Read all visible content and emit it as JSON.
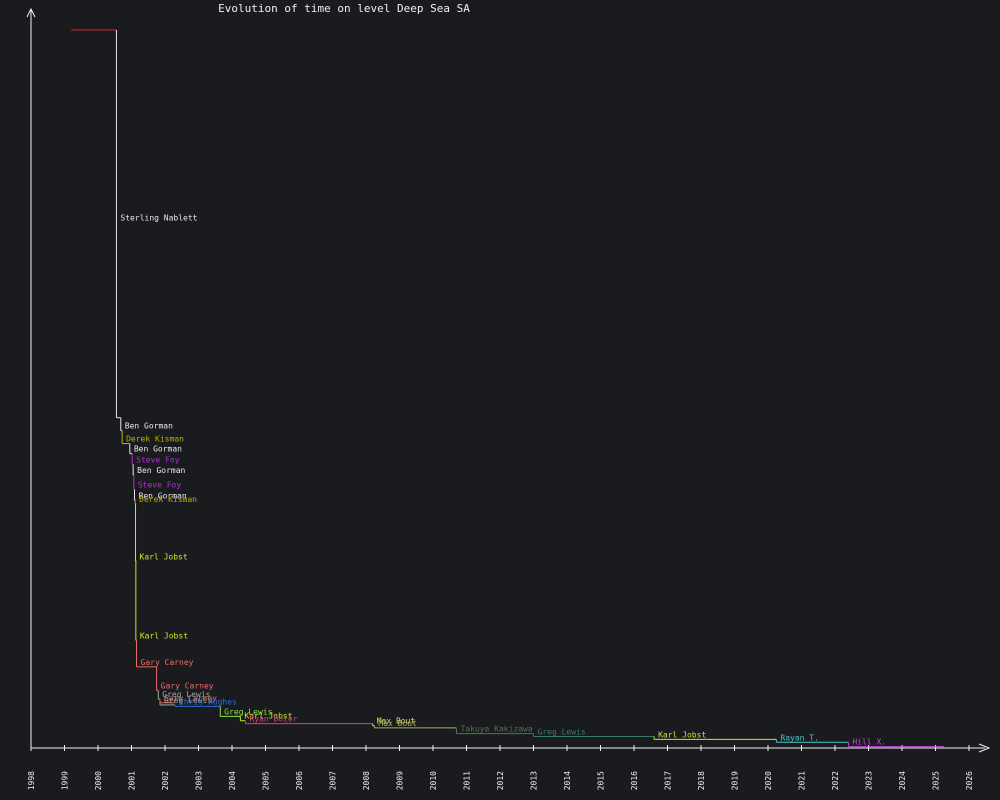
{
  "chart_data": {
    "type": "line",
    "title": "Evolution of time on level Deep Sea SA",
    "xlabel": "",
    "ylabel": "",
    "xlim": [
      1998.0,
      2026.5
    ],
    "ylim": [
      0,
      1000
    ],
    "grid": false,
    "legend": "none",
    "x_ticks": [
      "1998",
      "1999",
      "2000",
      "2001",
      "2002",
      "2003",
      "2004",
      "2005",
      "2006",
      "2007",
      "2008",
      "2009",
      "2010",
      "2011",
      "2012",
      "2013",
      "2014",
      "2015",
      "2016",
      "2017",
      "2018",
      "2019",
      "2020",
      "2021",
      "2022",
      "2023",
      "2024",
      "2025",
      "2026"
    ],
    "steps": [
      {
        "name": "",
        "x_start": 1999.2,
        "x_end": 2000.55,
        "y": 1000,
        "color": "#d22b2b",
        "label": false
      },
      {
        "name": "Sterling Nablett",
        "x_start": 2000.55,
        "x_end": 2000.68,
        "y": 460,
        "color": "#e8e8e8",
        "label": true,
        "label_y": 735
      },
      {
        "name": "Ben Gorman",
        "x_start": 2000.68,
        "x_end": 2000.72,
        "y": 442,
        "color": "#e8e8e8",
        "label": true
      },
      {
        "name": "Derek Kisman",
        "x_start": 2000.72,
        "x_end": 2000.95,
        "y": 424,
        "color": "#b8b200",
        "label": true
      },
      {
        "name": "Ben Gorman",
        "x_start": 2000.95,
        "x_end": 2001.02,
        "y": 410,
        "color": "#e8e8e8",
        "label": true
      },
      {
        "name": "Steve Foy",
        "x_start": 2001.02,
        "x_end": 2001.05,
        "y": 395,
        "color": "#b02fd0",
        "label": true
      },
      {
        "name": "Ben Gorman",
        "x_start": 2001.05,
        "x_end": 2001.07,
        "y": 380,
        "color": "#e8e8e8",
        "label": true
      },
      {
        "name": "Steve Foy",
        "x_start": 2001.07,
        "x_end": 2001.09,
        "y": 360,
        "color": "#b02fd0",
        "label": true
      },
      {
        "name": "Ben Gorman",
        "x_start": 2001.09,
        "x_end": 2001.11,
        "y": 345,
        "color": "#e8e8e8",
        "label": true
      },
      {
        "name": "Derek Kisman",
        "x_start": 2001.11,
        "x_end": 2001.12,
        "y": 340,
        "color": "#b8b200",
        "label": true
      },
      {
        "name": "Karl Jobst",
        "x_start": 2001.12,
        "x_end": 2001.13,
        "y": 260,
        "color": "#c5e82a",
        "label": true
      },
      {
        "name": "Karl Jobst",
        "x_start": 2001.13,
        "x_end": 2001.15,
        "y": 150,
        "color": "#c5e82a",
        "label": true
      },
      {
        "name": "Gary Carney",
        "x_start": 2001.15,
        "x_end": 2001.75,
        "y": 113,
        "color": "#f06a6a",
        "label": true
      },
      {
        "name": "Gary Carney",
        "x_start": 2001.75,
        "x_end": 2001.8,
        "y": 80,
        "color": "#f06a6a",
        "label": true
      },
      {
        "name": "Greg Lewis",
        "x_start": 2001.8,
        "x_end": 2001.85,
        "y": 68,
        "color": "#9aa89a",
        "label": true
      },
      {
        "name": "Gary Carney",
        "x_start": 2001.85,
        "x_end": 2002.28,
        "y": 63,
        "color": "#f06a6a",
        "label": true
      },
      {
        "name": "Greg Lewis",
        "x_start": 2001.85,
        "x_end": 2002.3,
        "y": 60,
        "color": "#9aa89a",
        "label": true
      },
      {
        "name": "Chris Hughes",
        "x_start": 2002.3,
        "x_end": 2003.65,
        "y": 58,
        "color": "#2a6ad8",
        "label": true
      },
      {
        "name": "Greg Lewis",
        "x_start": 2003.65,
        "x_end": 2004.25,
        "y": 44,
        "color": "#8ce24a",
        "label": true
      },
      {
        "name": "Karl Jobst",
        "x_start": 2004.25,
        "x_end": 2004.4,
        "y": 38,
        "color": "#c5e82a",
        "label": true
      },
      {
        "name": "Ryan Dozer",
        "x_start": 2004.4,
        "x_end": 2008.2,
        "y": 34,
        "color": "#e83a7a",
        "label": true
      },
      {
        "name": "Max Bout",
        "x_start": 2008.2,
        "x_end": 2008.25,
        "y": 31,
        "color": "#d8d870",
        "label": true
      },
      {
        "name": "Max Bout",
        "x_start": 2008.25,
        "x_end": 2010.7,
        "y": 28,
        "color": "#a8b060",
        "label": true
      },
      {
        "name": "Takuya Kakizawa",
        "x_start": 2010.7,
        "x_end": 2013.0,
        "y": 20,
        "color": "#4a7a4a",
        "label": true
      },
      {
        "name": "Greg Lewis",
        "x_start": 2013.0,
        "x_end": 2016.6,
        "y": 16,
        "color": "#3a7a6a",
        "label": true
      },
      {
        "name": "Karl Jobst",
        "x_start": 2016.6,
        "x_end": 2020.25,
        "y": 12,
        "color": "#c5e82a",
        "label": true
      },
      {
        "name": "Rayan T.",
        "x_start": 2020.25,
        "x_end": 2022.4,
        "y": 8,
        "color": "#48c8d0",
        "label": true
      },
      {
        "name": "Hill X.",
        "x_start": 2022.4,
        "x_end": 2025.25,
        "y": 2,
        "color": "#c04ad8",
        "label": true
      }
    ]
  }
}
